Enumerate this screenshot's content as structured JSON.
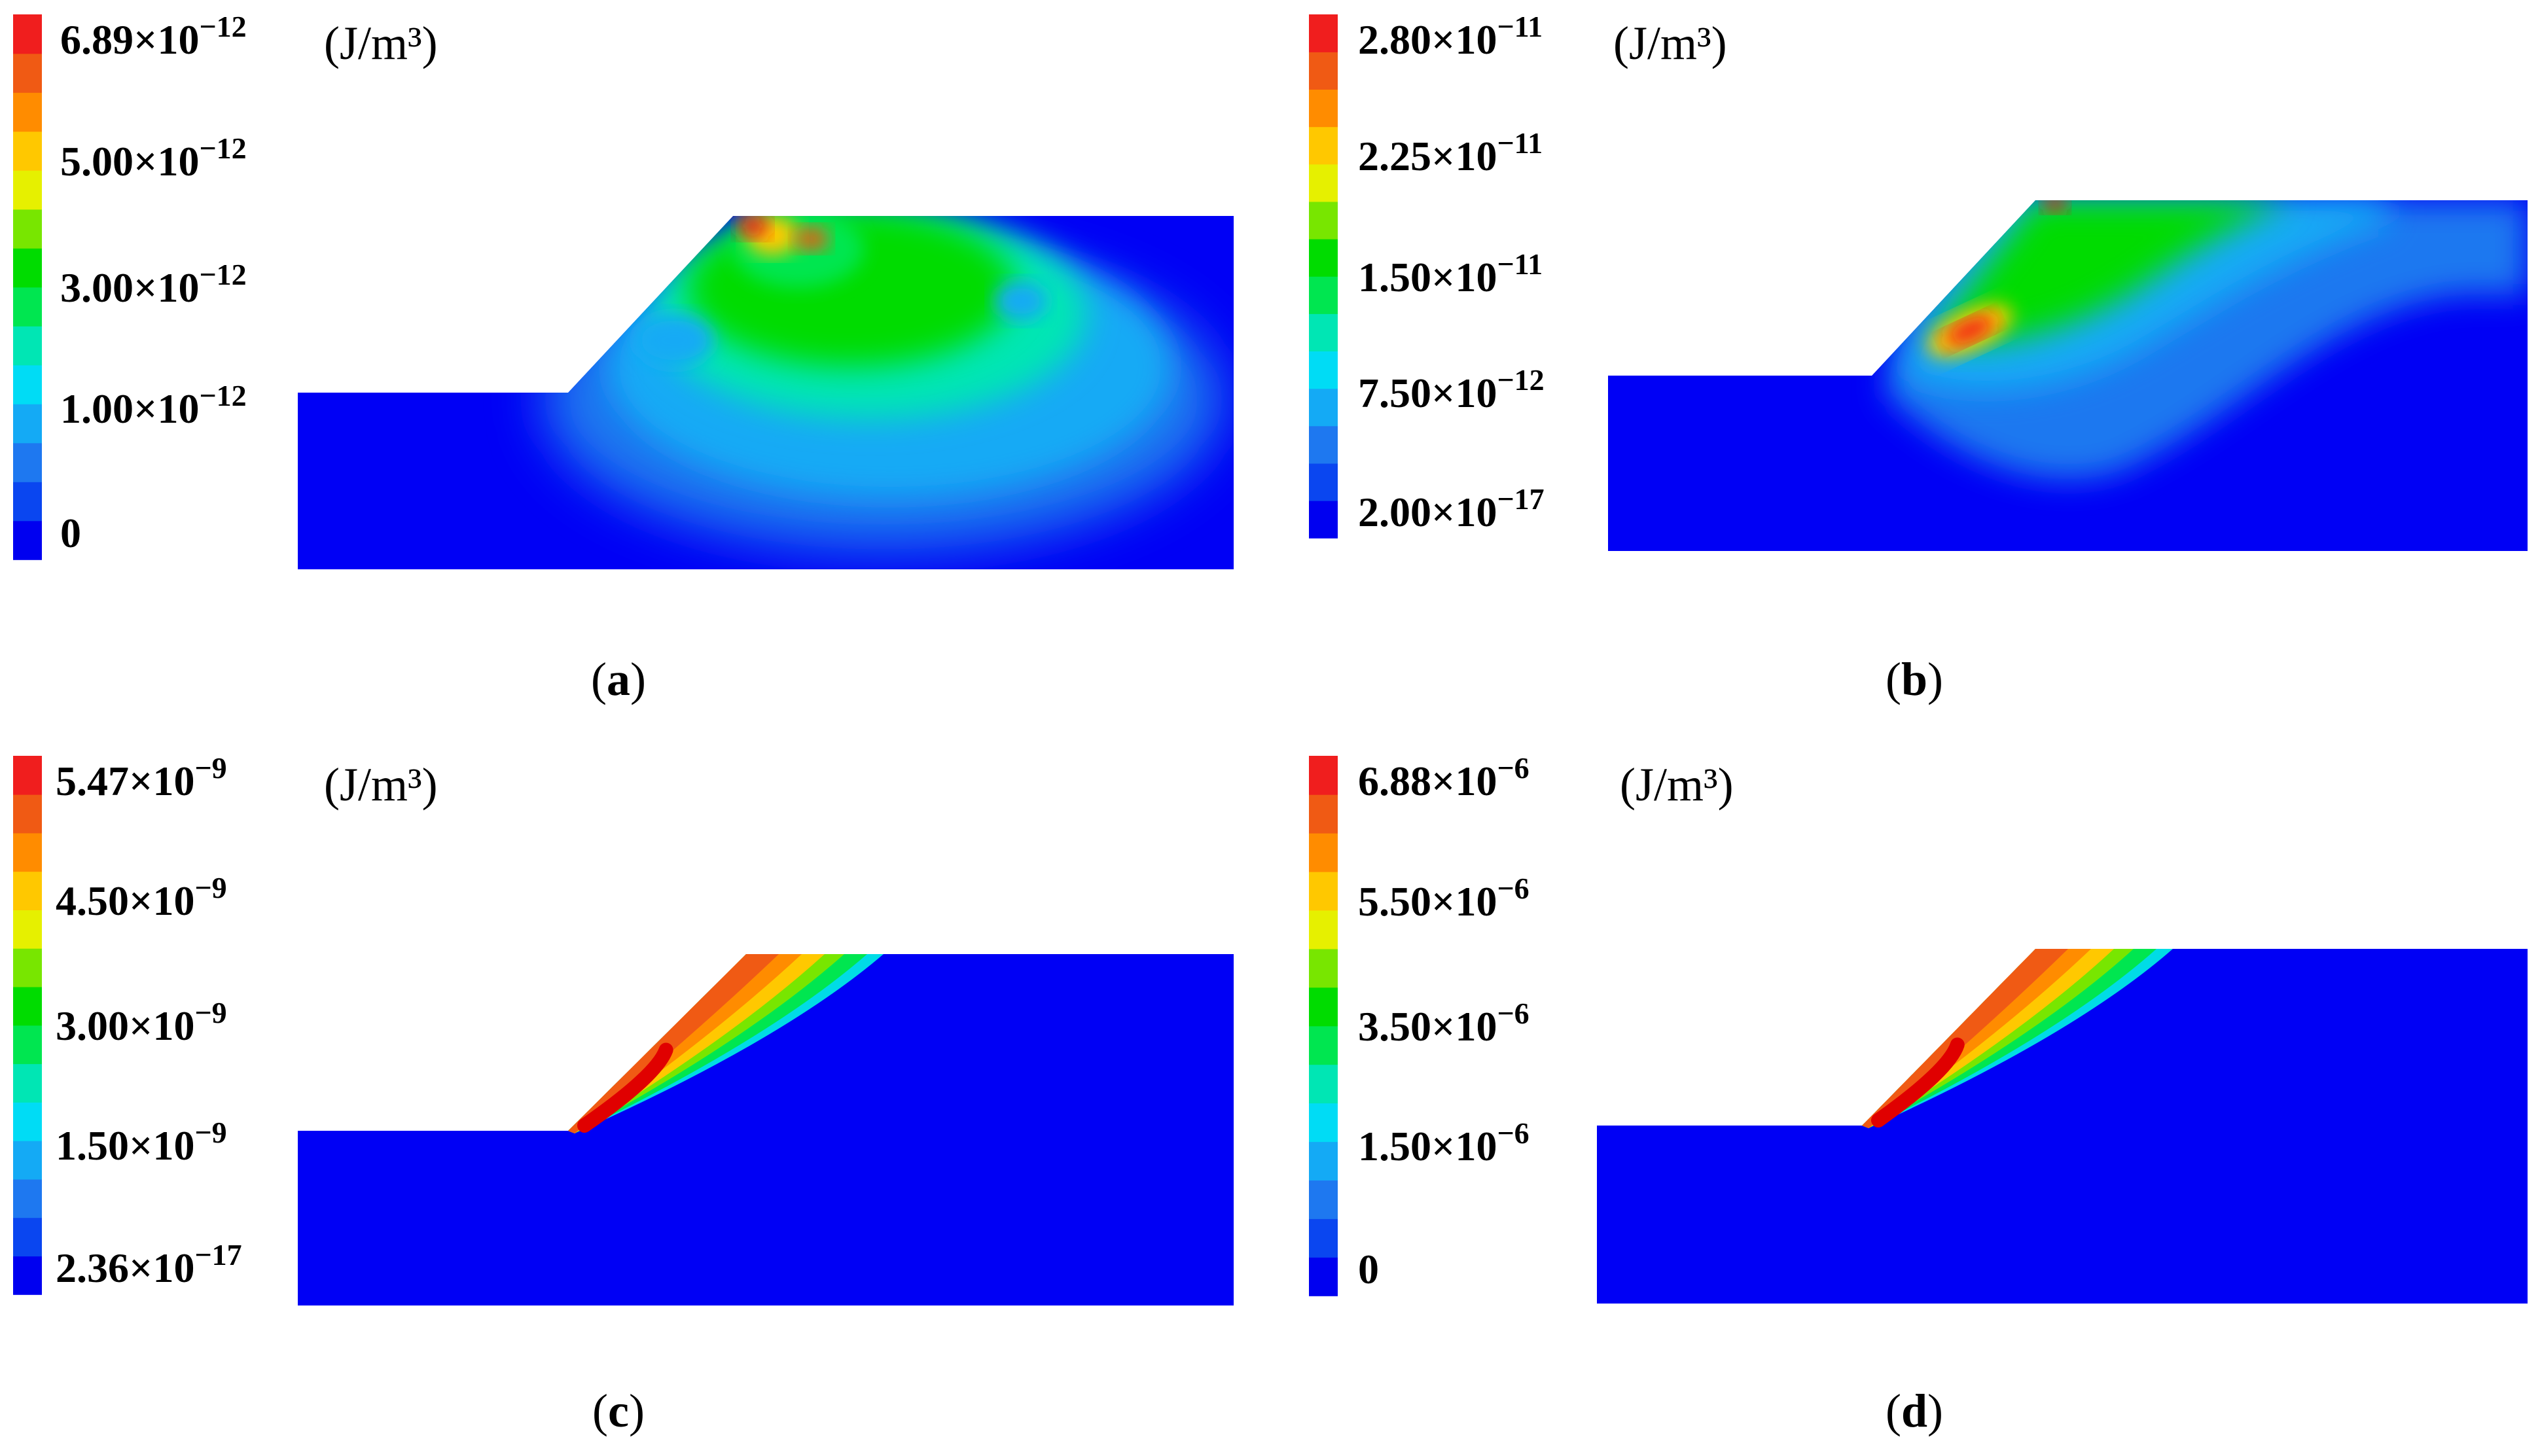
{
  "figure": {
    "panels": [
      {
        "caption": "a",
        "unit": "(J/m³)",
        "ticks": [
          {
            "mantissa": "6.89×10",
            "exponent": "−12",
            "value": 6.89e-12
          },
          {
            "mantissa": "5.00×10",
            "exponent": "−12",
            "value": 5e-12
          },
          {
            "mantissa": "3.00×10",
            "exponent": "−12",
            "value": 3e-12
          },
          {
            "mantissa": "1.00×10",
            "exponent": "−12",
            "value": 1e-12
          },
          {
            "mantissa": "0",
            "exponent": "",
            "value": 0
          }
        ]
      },
      {
        "caption": "b",
        "unit": "(J/m³)",
        "ticks": [
          {
            "mantissa": "2.80×10",
            "exponent": "−11",
            "value": 2.8e-11
          },
          {
            "mantissa": "2.25×10",
            "exponent": "−11",
            "value": 2.25e-11
          },
          {
            "mantissa": "1.50×10",
            "exponent": "−11",
            "value": 1.5e-11
          },
          {
            "mantissa": "7.50×10",
            "exponent": "−12",
            "value": 7.5e-12
          },
          {
            "mantissa": "2.00×10",
            "exponent": "−17",
            "value": 2e-17
          }
        ]
      },
      {
        "caption": "c",
        "unit": "(J/m³)",
        "ticks": [
          {
            "mantissa": "5.47×10",
            "exponent": "−9",
            "value": 5.47e-09
          },
          {
            "mantissa": "4.50×10",
            "exponent": "−9",
            "value": 4.5e-09
          },
          {
            "mantissa": "3.00×10",
            "exponent": "−9",
            "value": 3e-09
          },
          {
            "mantissa": "1.50×10",
            "exponent": "−9",
            "value": 1.5e-09
          },
          {
            "mantissa": "2.36×10",
            "exponent": "−17",
            "value": 2.36e-17
          }
        ]
      },
      {
        "caption": "d",
        "unit": "(J/m³)",
        "ticks": [
          {
            "mantissa": "6.88×10",
            "exponent": "−6",
            "value": 6.88e-06
          },
          {
            "mantissa": "5.50×10",
            "exponent": "−6",
            "value": 5.5e-06
          },
          {
            "mantissa": "3.50×10",
            "exponent": "−6",
            "value": 3.5e-06
          },
          {
            "mantissa": "1.50×10",
            "exponent": "−6",
            "value": 1.5e-06
          },
          {
            "mantissa": "0",
            "exponent": "",
            "value": 0
          }
        ]
      }
    ]
  },
  "colors": {
    "background_blue": "#0000f5",
    "colorbar_levels": [
      "#0000f0",
      "#0a46f0",
      "#1e78f0",
      "#14aaf5",
      "#00dcf5",
      "#00e6b4",
      "#00e650",
      "#00dc00",
      "#78e600",
      "#e6f000",
      "#ffc800",
      "#ff8c00",
      "#f05a14",
      "#f01e1e"
    ]
  },
  "chart_data": [
    {
      "type": "heatmap",
      "title": "",
      "panel": "a",
      "colorbar_unit": "(J/m³)",
      "colorbar_range": [
        0,
        6.89e-12
      ],
      "colorbar_ticks": [
        0,
        1e-12,
        3e-12,
        5e-12,
        6.89e-12
      ],
      "pattern": "diffuse",
      "peak_value": 6.89e-12
    },
    {
      "type": "heatmap",
      "title": "",
      "panel": "b",
      "colorbar_unit": "(J/m³)",
      "colorbar_range": [
        2e-17,
        2.8e-11
      ],
      "colorbar_ticks": [
        2e-17,
        7.5e-12,
        1.5e-11,
        2.25e-11,
        2.8e-11
      ],
      "pattern": "diffuse-band",
      "peak_value": 2.8e-11
    },
    {
      "type": "heatmap",
      "title": "",
      "panel": "c",
      "colorbar_unit": "(J/m³)",
      "colorbar_range": [
        2.36e-17,
        5.47e-09
      ],
      "colorbar_ticks": [
        2.36e-17,
        1.5e-09,
        3e-09,
        4.5e-09,
        5.47e-09
      ],
      "pattern": "localized-slip-band",
      "peak_value": 5.47e-09
    },
    {
      "type": "heatmap",
      "title": "",
      "panel": "d",
      "colorbar_unit": "(J/m³)",
      "colorbar_range": [
        0,
        6.88e-06
      ],
      "colorbar_ticks": [
        0,
        1.5e-06,
        3.5e-06,
        5.5e-06,
        6.88e-06
      ],
      "pattern": "localized-slip-band",
      "peak_value": 6.88e-06
    }
  ]
}
